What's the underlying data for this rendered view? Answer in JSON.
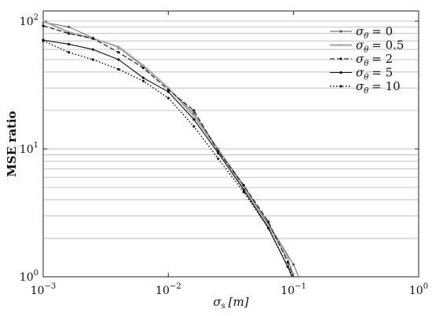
{
  "chart_data": {
    "type": "line",
    "title": "",
    "xlabel": {
      "symbol": "σ",
      "subscript": "s",
      "unit": "[m]"
    },
    "ylabel": "MSE ratio",
    "x_scale": "log",
    "y_scale": "log",
    "xlim": [
      0.001,
      1
    ],
    "ylim": [
      1,
      120
    ],
    "x_ticks": [
      {
        "value": 0.001,
        "base": "10",
        "exp": "−3"
      },
      {
        "value": 0.01,
        "base": "10",
        "exp": "−2"
      },
      {
        "value": 0.1,
        "base": "10",
        "exp": "−1"
      },
      {
        "value": 1,
        "base": "10",
        "exp": "0"
      }
    ],
    "y_ticks": [
      {
        "value": 1,
        "base": "10",
        "exp": "0"
      },
      {
        "value": 10,
        "base": "10",
        "exp": "1"
      },
      {
        "value": 100,
        "base": "10",
        "exp": "2"
      }
    ],
    "grid": {
      "y_minor": true,
      "y_major": true,
      "x": false
    },
    "legend": {
      "placement": "top-right",
      "symbol": "σ",
      "subscript": "θ"
    },
    "series": [
      {
        "name": "0",
        "label": "= 0",
        "color": "#555555",
        "dash": "solid",
        "width": 0.9,
        "x": [
          0.001,
          0.0016,
          0.0025,
          0.004,
          0.0063,
          0.01,
          0.016,
          0.025,
          0.04,
          0.063,
          0.1,
          0.11
        ],
        "y": [
          98,
          90,
          74,
          62,
          44,
          30,
          19,
          10,
          5.2,
          2.6,
          1.25,
          1.0
        ]
      },
      {
        "name": "0.5",
        "label": "= 0.5",
        "color": "#aaaaaa",
        "dash": "solid",
        "width": 2.2,
        "x": [
          0.001,
          0.0016,
          0.0025,
          0.004,
          0.0063,
          0.01,
          0.016,
          0.025,
          0.04,
          0.063,
          0.09,
          0.1
        ],
        "y": [
          100,
          82,
          73,
          63,
          45,
          30,
          18,
          9.8,
          5.0,
          2.5,
          1.4,
          1.0
        ]
      },
      {
        "name": "2",
        "label": "= 2",
        "color": "#111111",
        "dash": "6,3",
        "width": 1.1,
        "x": [
          0.001,
          0.0016,
          0.0025,
          0.004,
          0.0063,
          0.01,
          0.016,
          0.025,
          0.04,
          0.063,
          0.09,
          0.1
        ],
        "y": [
          92,
          80,
          73,
          57,
          43,
          29,
          20,
          9.6,
          5.2,
          2.7,
          1.3,
          1.0
        ]
      },
      {
        "name": "5",
        "label": "= 5",
        "color": "#111111",
        "dash": "solid",
        "width": 1.1,
        "x": [
          0.001,
          0.0016,
          0.0025,
          0.004,
          0.0063,
          0.01,
          0.016,
          0.025,
          0.04,
          0.063,
          0.09,
          0.097
        ],
        "y": [
          71,
          66,
          60,
          50,
          36,
          28,
          17,
          9.3,
          4.8,
          2.4,
          1.2,
          1.0
        ]
      },
      {
        "name": "10",
        "label": "= 10",
        "color": "#111111",
        "dash": "1.5,2.5",
        "width": 1.5,
        "x": [
          0.001,
          0.0016,
          0.0025,
          0.004,
          0.0063,
          0.01,
          0.016,
          0.025,
          0.04,
          0.063,
          0.09,
          0.1
        ],
        "y": [
          70,
          57,
          50,
          42,
          34,
          25,
          15,
          8.4,
          4.6,
          2.4,
          1.2,
          1.0
        ]
      }
    ]
  }
}
